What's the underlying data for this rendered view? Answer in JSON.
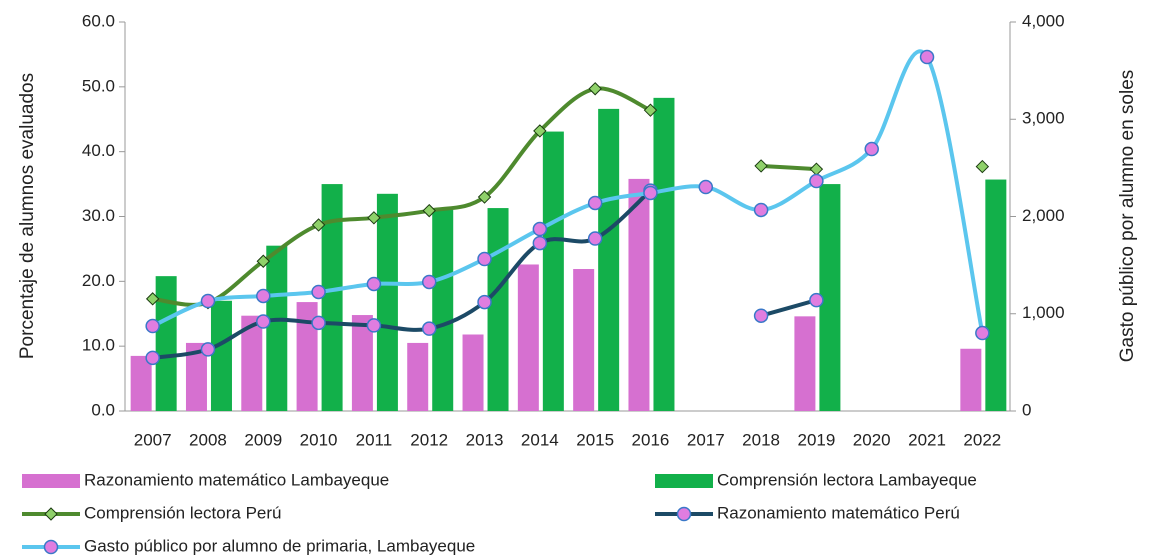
{
  "chart_data": {
    "type": "combo",
    "y_label": "Porcentaje de alumnos evaluados",
    "y2_label": "Gasto público por alumno en soles",
    "categories": [
      "2007",
      "2008",
      "2009",
      "2010",
      "2011",
      "2012",
      "2013",
      "2014",
      "2015",
      "2016",
      "2017",
      "2018",
      "2019",
      "2020",
      "2021",
      "2022"
    ],
    "ylim": [
      0,
      60
    ],
    "yticks": [
      {
        "value": 0,
        "label": "0.0"
      },
      {
        "value": 10,
        "label": "10.0"
      },
      {
        "value": 20,
        "label": "20.0"
      },
      {
        "value": 30,
        "label": "30.0"
      },
      {
        "value": 40,
        "label": "40.0"
      },
      {
        "value": 50,
        "label": "50.0"
      },
      {
        "value": 60,
        "label": "60.0"
      }
    ],
    "y2lim": [
      0,
      4000
    ],
    "y2ticks": [
      0,
      {
        "value": 1000,
        "label": "1,000"
      },
      {
        "value": 2000,
        "label": "2,000"
      },
      {
        "value": 3000,
        "label": "3,000"
      },
      {
        "value": 4000,
        "label": "4,000"
      }
    ],
    "series": [
      {
        "name": "Razonamiento matemático Lambayeque",
        "kind": "bar",
        "color": "#d670d0",
        "values": [
          8.5,
          10.5,
          14.7,
          16.8,
          14.8,
          10.5,
          11.8,
          22.6,
          21.9,
          35.8,
          null,
          null,
          14.6,
          null,
          null,
          9.6
        ]
      },
      {
        "name": "Comprensión lectora Lambayeque",
        "kind": "bar",
        "color": "#12b04a",
        "values": [
          20.8,
          17.0,
          25.5,
          35.0,
          33.5,
          31.0,
          31.3,
          43.1,
          46.6,
          48.3,
          null,
          null,
          35.0,
          null,
          null,
          35.7
        ]
      },
      {
        "name": "Comprensión lectora Perú",
        "kind": "line",
        "marker": "diamond",
        "color": "#4e8a2e",
        "marker_color": "#8fd16a",
        "values": [
          17.3,
          16.7,
          23.1,
          28.7,
          29.8,
          30.9,
          33.0,
          43.2,
          49.7,
          46.4,
          null,
          37.8,
          37.3,
          null,
          null,
          37.7
        ]
      },
      {
        "name": "Razonamiento matemático Perú",
        "kind": "line",
        "marker": "circle",
        "color": "#1c4a66",
        "marker_color": "#e07de0",
        "values": [
          8.2,
          9.5,
          13.8,
          13.6,
          13.2,
          12.7,
          16.8,
          25.9,
          26.6,
          34.0,
          null,
          14.7,
          17.1,
          null,
          null,
          null
        ]
      },
      {
        "name": "Gasto público por alumno de primaria, Lambayeque",
        "kind": "line",
        "marker": "circle",
        "axis": "y2",
        "color": "#5bc6ee",
        "marker_color": "#e07de0",
        "values": [
          874,
          1131,
          1183,
          1224,
          1306,
          1327,
          1563,
          1871,
          2139,
          2242,
          2303,
          2067,
          2365,
          2694,
          3640,
          802
        ]
      }
    ]
  }
}
